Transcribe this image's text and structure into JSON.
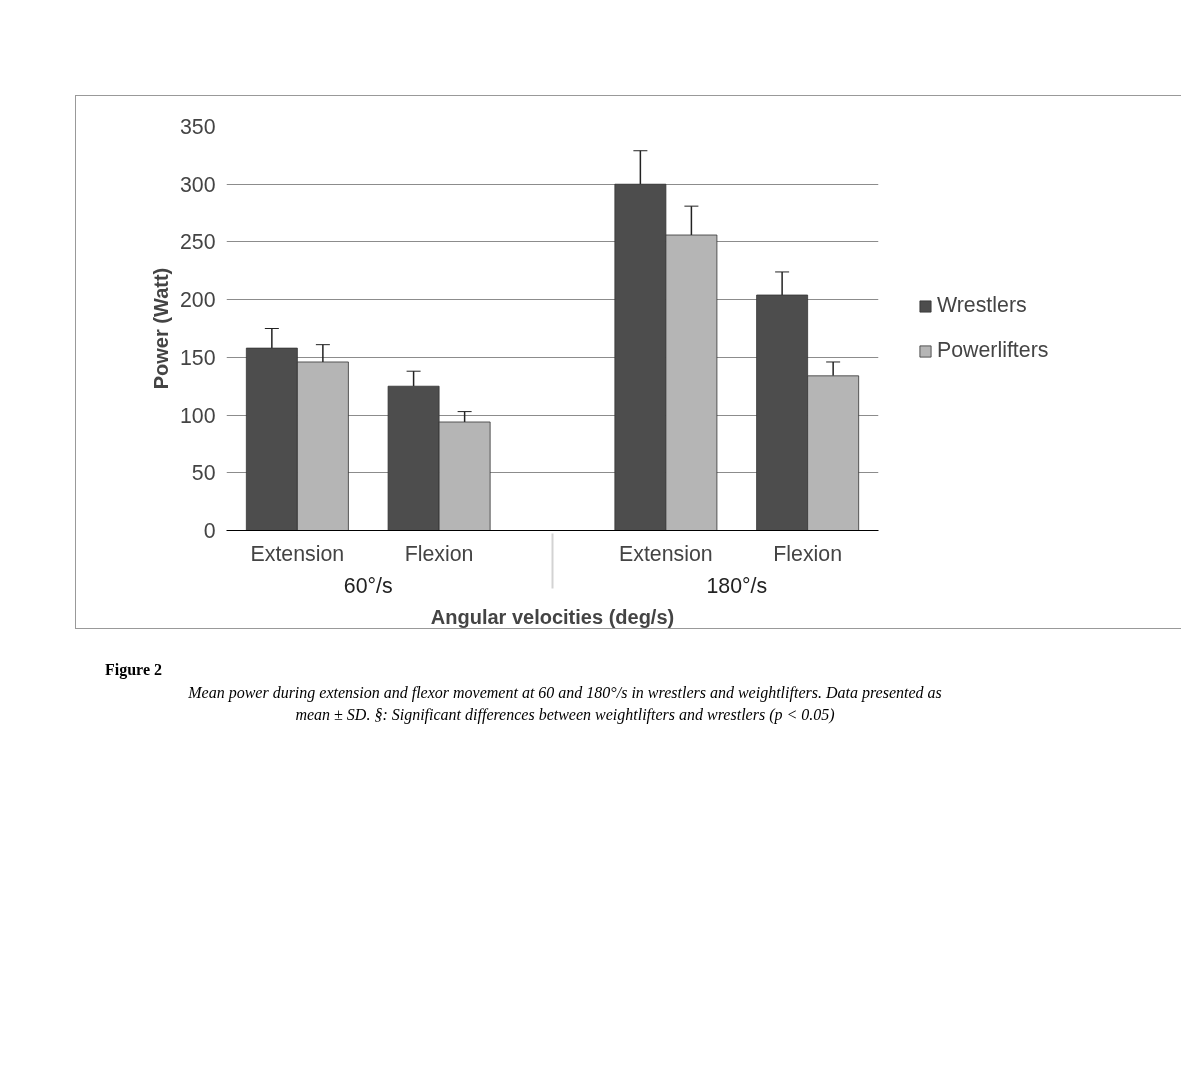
{
  "chart_data": {
    "type": "bar",
    "categories": [
      "Extension",
      "Flexion",
      "Extension",
      "Flexion"
    ],
    "series": [
      {
        "name": "Wrestlers",
        "color": "#4d4d4d",
        "values": [
          158,
          125,
          300,
          204
        ],
        "errors": [
          [
            158,
            175
          ],
          [
            125,
            138
          ],
          [
            300,
            329
          ],
          [
            204,
            224
          ]
        ]
      },
      {
        "name": "Powerlifters",
        "color": "#b5b5b5",
        "values": [
          146,
          94,
          256,
          134
        ],
        "errors": [
          [
            146,
            161
          ],
          [
            94,
            103
          ],
          [
            256,
            281
          ],
          [
            134,
            146
          ]
        ]
      }
    ],
    "xlabel": "Angular velocities (deg/s)",
    "ylabel": "Power (Watt)",
    "ylim": [
      0,
      350
    ],
    "yticks": [
      0,
      50,
      100,
      150,
      200,
      250,
      300,
      350
    ],
    "grid": "y",
    "legend": "right",
    "annotations": [
      "60°/s",
      "180°/s",
      "Figure 2",
      "Mean power during extension and flexor movement at 60 and 180°/s in wrestlers and weightlifters. Data presented as mean ± SD. §: Significant differences between weightlifters and wrestlers (p < 0.05)"
    ]
  }
}
